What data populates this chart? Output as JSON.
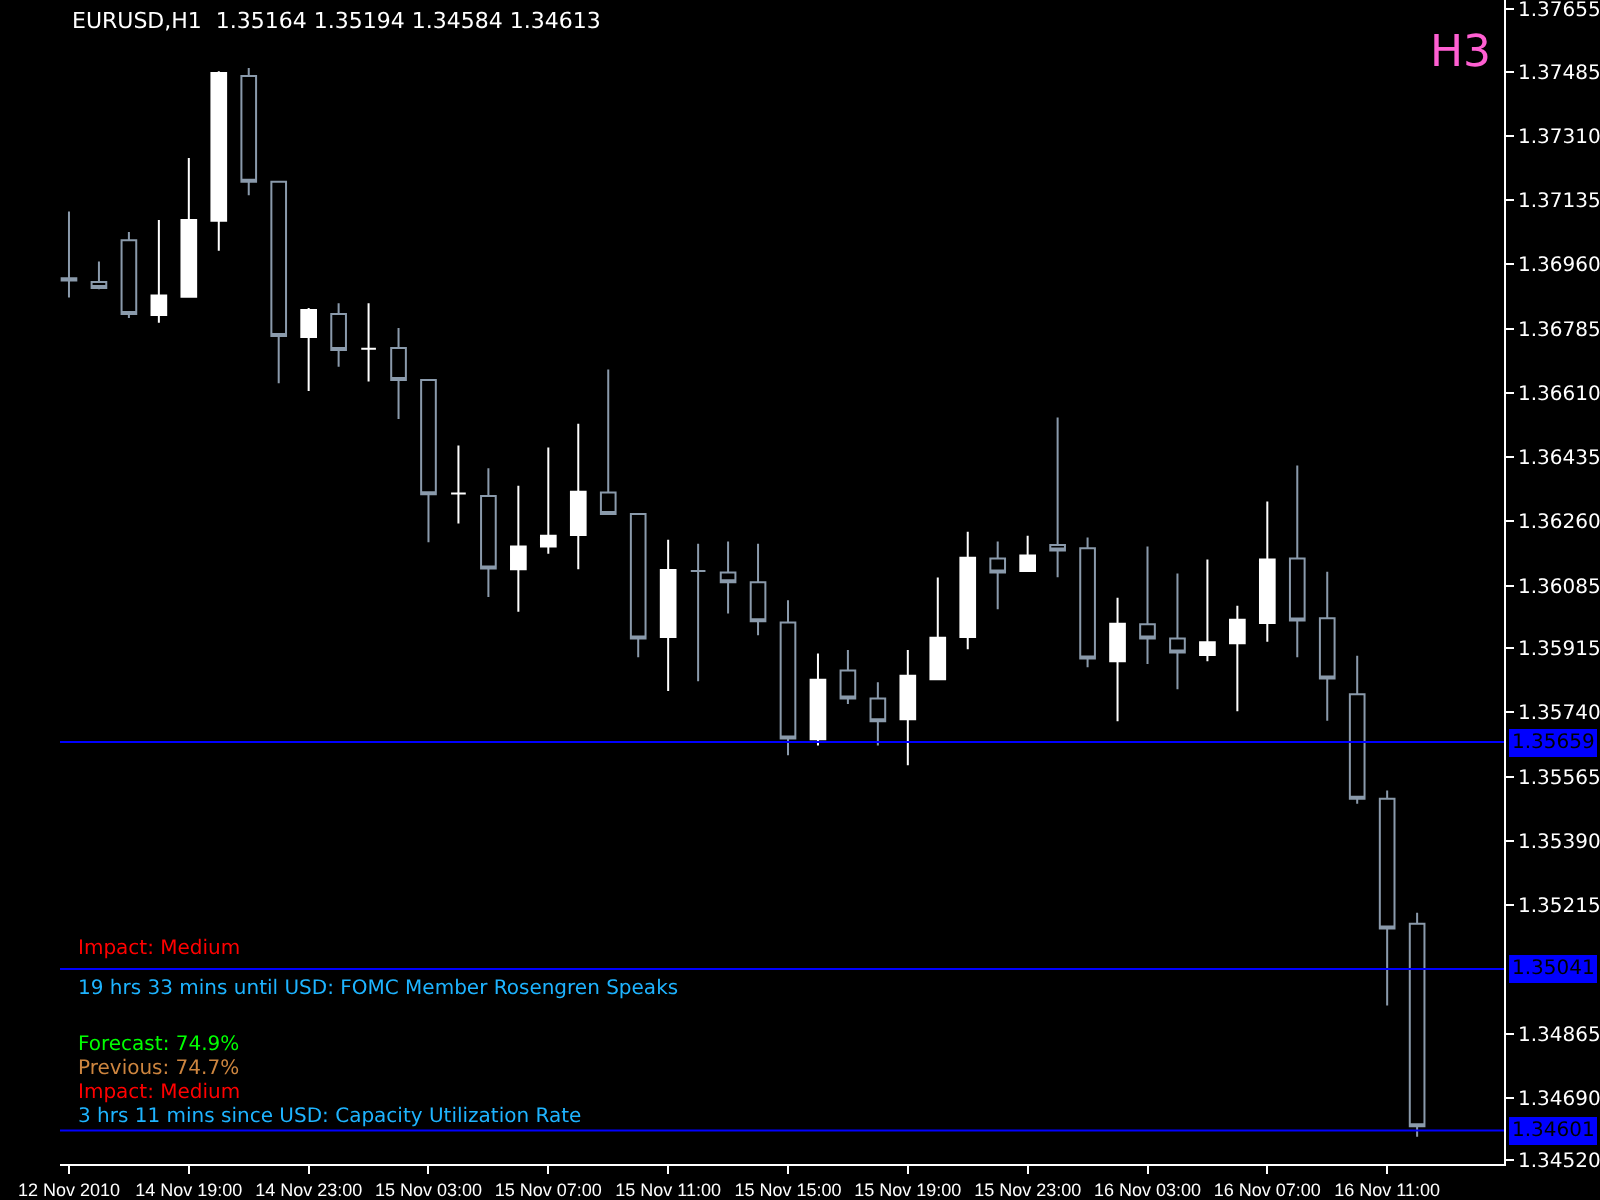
{
  "chart_data": {
    "type": "candlestick",
    "title": "EURUSD,H1  1.35164 1.35194 1.34584 1.34613",
    "categories": [
      "12 Nov 2010",
      null,
      null,
      null,
      "14 Nov 19:00",
      null,
      null,
      null,
      "14 Nov 23:00",
      null,
      null,
      null,
      "15 Nov 03:00",
      null,
      null,
      null,
      "15 Nov 07:00",
      null,
      null,
      null,
      "15 Nov 11:00",
      null,
      null,
      null,
      "15 Nov 15:00",
      null,
      null,
      null,
      "15 Nov 19:00",
      null,
      null,
      null,
      "15 Nov 23:00",
      null,
      null,
      null,
      "16 Nov 03:00",
      null,
      null,
      null,
      "16 Nov 07:00",
      null,
      null,
      null,
      "16 Nov 11:00",
      null
    ],
    "ohlc": [
      [
        1.36922,
        1.37104,
        1.3687,
        1.36916
      ],
      [
        1.36912,
        1.36968,
        1.36892,
        1.36896
      ],
      [
        1.37026,
        1.37048,
        1.36814,
        1.36825
      ],
      [
        1.36822,
        1.37081,
        1.36801,
        1.36875
      ],
      [
        1.36872,
        1.3725,
        1.36872,
        1.37081
      ],
      [
        1.37079,
        1.37486,
        1.36997,
        1.37481
      ],
      [
        1.37473,
        1.37495,
        1.37148,
        1.37185
      ],
      [
        1.37185,
        1.37185,
        1.36636,
        1.36765
      ],
      [
        1.36762,
        1.36841,
        1.36615,
        1.36836
      ],
      [
        1.36825,
        1.36854,
        1.36681,
        1.36727
      ],
      [
        1.3673,
        1.36854,
        1.36641,
        1.3673
      ],
      [
        1.36732,
        1.36787,
        1.36539,
        1.36645
      ],
      [
        1.36645,
        1.36645,
        1.36203,
        1.36334
      ],
      [
        1.36336,
        1.36467,
        1.36254,
        1.36336
      ],
      [
        1.36329,
        1.36405,
        1.36054,
        1.36132
      ],
      [
        1.3613,
        1.36357,
        1.36014,
        1.36192
      ],
      [
        1.36192,
        1.36461,
        1.36172,
        1.36221
      ],
      [
        1.36223,
        1.36526,
        1.3613,
        1.36341
      ],
      [
        1.36339,
        1.36674,
        1.3628,
        1.3628
      ],
      [
        1.3628,
        1.3628,
        1.3589,
        1.35941
      ],
      [
        1.35945,
        1.3621,
        1.35798,
        1.36128
      ],
      [
        1.36125,
        1.36199,
        1.35825,
        1.36125
      ],
      [
        1.36121,
        1.36205,
        1.36009,
        1.36094
      ],
      [
        1.36094,
        1.36199,
        1.3595,
        1.35988
      ],
      [
        1.35985,
        1.36045,
        1.35623,
        1.35669
      ],
      [
        1.35667,
        1.359,
        1.3565,
        1.35829
      ],
      [
        1.35854,
        1.3591,
        1.35763,
        1.35778
      ],
      [
        1.35778,
        1.35822,
        1.3565,
        1.35716
      ],
      [
        1.35721,
        1.3591,
        1.35596,
        1.3584
      ],
      [
        1.3583,
        1.36107,
        1.3583,
        1.35943
      ],
      [
        1.35945,
        1.36232,
        1.35912,
        1.36161
      ],
      [
        1.36159,
        1.36205,
        1.36021,
        1.36121
      ],
      [
        1.36125,
        1.36221,
        1.36125,
        1.36167
      ],
      [
        1.36196,
        1.36543,
        1.36108,
        1.36181
      ],
      [
        1.36187,
        1.36216,
        1.35863,
        1.35887
      ],
      [
        1.35879,
        1.36052,
        1.35716,
        1.35981
      ],
      [
        1.3598,
        1.36192,
        1.35872,
        1.35941
      ],
      [
        1.35941,
        1.36118,
        1.35803,
        1.35903
      ],
      [
        1.35896,
        1.36156,
        1.35879,
        1.35931
      ],
      [
        1.35928,
        1.3603,
        1.35743,
        1.35992
      ],
      [
        1.35983,
        1.36314,
        1.35932,
        1.36156
      ],
      [
        1.36159,
        1.36412,
        1.3589,
        1.3599
      ],
      [
        1.35996,
        1.36123,
        1.35717,
        1.35832
      ],
      [
        1.35789,
        1.35894,
        1.35491,
        1.35505
      ],
      [
        1.35505,
        1.35527,
        1.34942,
        1.35151
      ],
      [
        1.35164,
        1.35194,
        1.34584,
        1.34613
      ]
    ],
    "ylim": [
      1.3451,
      1.3768
    ],
    "yticks": [
      1.37655,
      1.37485,
      {
        "value": 1.3731,
        "label": "1.37310"
      },
      1.37135,
      {
        "value": 1.3696,
        "label": "1.36960"
      },
      1.36785,
      {
        "value": 1.3661,
        "label": "1.36610"
      },
      1.36435,
      {
        "value": 1.3626,
        "label": "1.36260"
      },
      1.36085,
      1.35915,
      {
        "value": 1.3574,
        "label": "1.35740"
      },
      1.35565,
      {
        "value": 1.3539,
        "label": "1.35390"
      },
      1.35215,
      1.34865,
      {
        "value": 1.3469,
        "label": "1.34690"
      },
      {
        "value": 1.3452,
        "label": "1.34520"
      }
    ],
    "ref_lines": [
      {
        "axis": "y",
        "value": 1.35659,
        "label": "1.35659",
        "color": "#0000ff"
      },
      {
        "axis": "y",
        "value": 1.35041,
        "label": "1.35041",
        "color": "#0000ff"
      },
      {
        "axis": "y",
        "value": 1.34601,
        "label": "1.34601",
        "color": "#0000ff"
      }
    ],
    "annotations": [
      "H3",
      "Impact: Medium",
      "19 hrs 33 mins until USD: FOMC Member Rosengren Speaks",
      "Forecast: 74.9%",
      "Previous: 74.7%",
      "Impact: Medium",
      "3 hrs 11 mins since USD: Capacity Utilization Rate"
    ],
    "grid": false,
    "legend": false
  }
}
